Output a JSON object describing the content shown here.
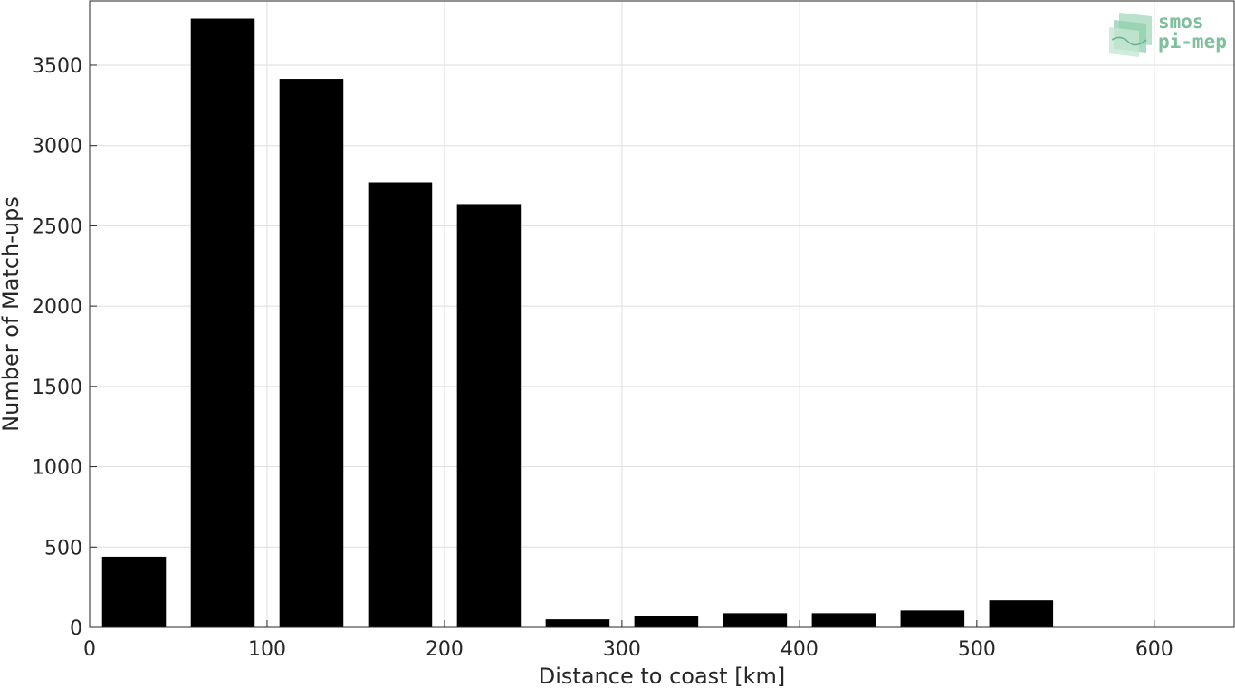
{
  "chart_data": {
    "type": "bar",
    "xlabel": "Distance to coast [km]",
    "ylabel": "Number of Match-ups",
    "xlim": [
      0,
      645
    ],
    "ylim": [
      0,
      3900
    ],
    "x_ticks": [
      0,
      100,
      200,
      300,
      400,
      500,
      600
    ],
    "y_ticks": [
      0,
      500,
      1000,
      1500,
      2000,
      2500,
      3000,
      3500
    ],
    "bin_width": 50,
    "bar_width": 36,
    "series": [
      {
        "x": [
          25,
          75,
          125,
          175,
          225,
          275,
          325,
          375,
          425,
          475,
          525
        ],
        "values": [
          440,
          3790,
          3415,
          2770,
          2635,
          50,
          72,
          88,
          88,
          105,
          168
        ]
      }
    ],
    "grid": true,
    "legend": "none",
    "bar_color": "#000000"
  },
  "logo": {
    "line1": "smos",
    "line2": "pi-mep",
    "color": "#7fbf9c"
  }
}
